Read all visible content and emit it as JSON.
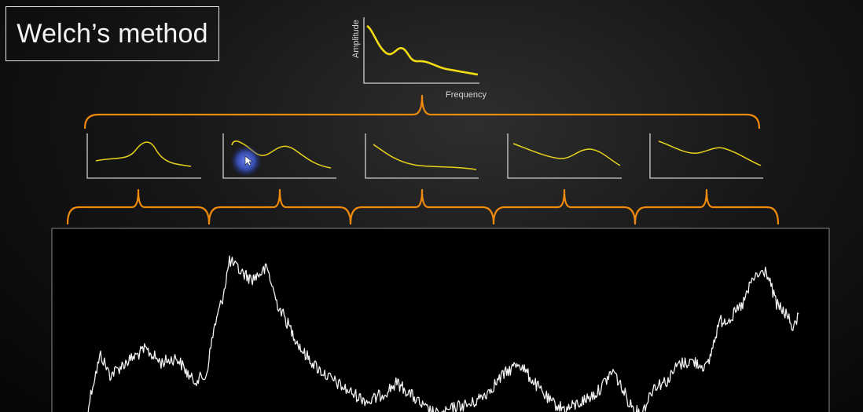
{
  "title": "Welch’s method",
  "main_spectrum": {
    "xlabel": "Frequency",
    "ylabel": "Amplitude"
  },
  "segment_count": 5,
  "colors": {
    "background": "#000000",
    "spectrum_curve": "#f2dc14",
    "brace": "#f08a0e",
    "signal": "#f2f2f2",
    "cursor_highlight": "#3a55c8"
  }
}
